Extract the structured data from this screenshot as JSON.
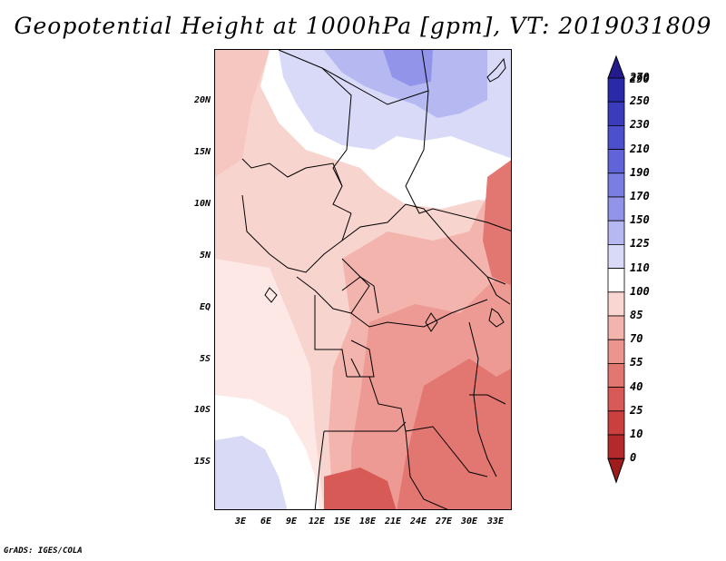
{
  "title": "Geopotential Height at 1000hPa [gpm], VT: 2019031809",
  "footer": "GrADS: IGES/COLA",
  "lat_labels": [
    "20N",
    "15N",
    "10N",
    "5N",
    "EQ",
    "5S",
    "10S",
    "15S"
  ],
  "lon_labels": [
    "3E",
    "6E",
    "9E",
    "12E",
    "15E",
    "18E",
    "21E",
    "24E",
    "27E",
    "30E",
    "33E"
  ],
  "colorbar": {
    "labels": [
      "290",
      "270",
      "250",
      "230",
      "210",
      "190",
      "170",
      "150",
      "125",
      "110",
      "100",
      "85",
      "70",
      "55",
      "40",
      "25",
      "10",
      "0"
    ],
    "colors_top_to_bottom": [
      "#231a8c",
      "#2a2aa8",
      "#3a3cbc",
      "#4c50cc",
      "#6064d8",
      "#7a7ee2",
      "#9294ea",
      "#b6b8f2",
      "#d8daf8",
      "#ffffff",
      "#fad6d2",
      "#f4b4ae",
      "#ec958e",
      "#e27670",
      "#d85a56",
      "#c9403e",
      "#b42a2a",
      "#9e1c1c"
    ]
  },
  "map": {
    "region": "Central Africa",
    "lat_range": [
      -19.5,
      24.5
    ],
    "lon_range": [
      0,
      35
    ],
    "variable": "Geopotential Height at 1000hPa",
    "units": "gpm",
    "valid_time": "2019031809"
  }
}
